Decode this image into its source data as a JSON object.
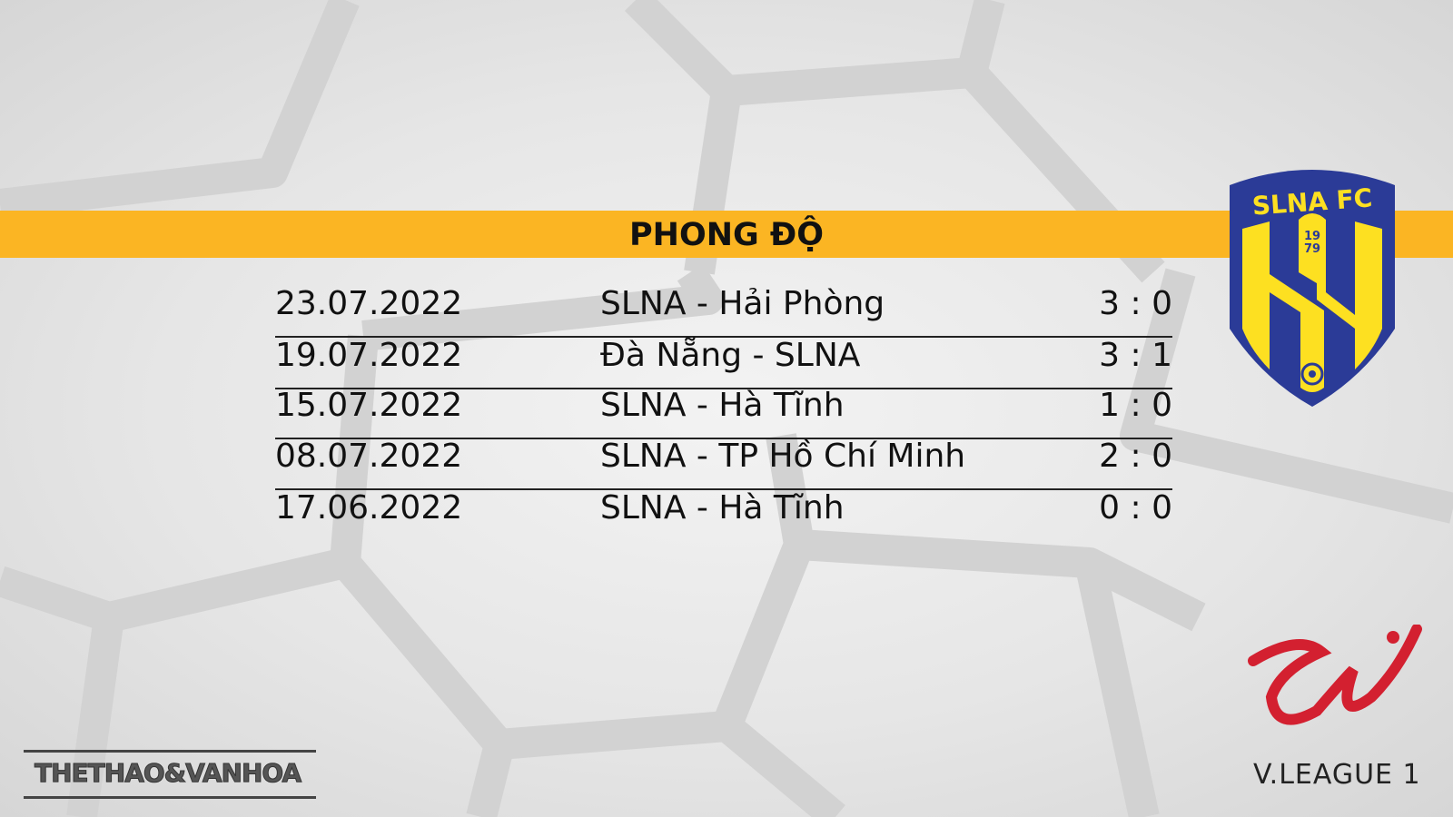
{
  "header": {
    "title": "PHONG ĐỘ"
  },
  "matches": [
    {
      "date": "23.07.2022",
      "match": "SLNA - Hải Phòng",
      "score": "3 : 0"
    },
    {
      "date": "19.07.2022",
      "match": "Đà Nẵng - SLNA",
      "score": "3 : 1"
    },
    {
      "date": "15.07.2022",
      "match": "SLNA - Hà Tĩnh",
      "score": "1 : 0"
    },
    {
      "date": "08.07.2022",
      "match": "SLNA - TP Hồ Chí Minh",
      "score": "2 : 0"
    },
    {
      "date": "17.06.2022",
      "match": "SLNA - Hà Tĩnh",
      "score": "0 : 0"
    }
  ],
  "logos": {
    "club": {
      "name": "SLNA FC",
      "year": "1979"
    },
    "league": "V.LEAGUE 1",
    "publisher": "THETHAO&VANHOA"
  },
  "colors": {
    "band": "#fbb523",
    "club_blue": "#2b3b97",
    "club_yellow": "#fde021",
    "league_red": "#d32030"
  }
}
